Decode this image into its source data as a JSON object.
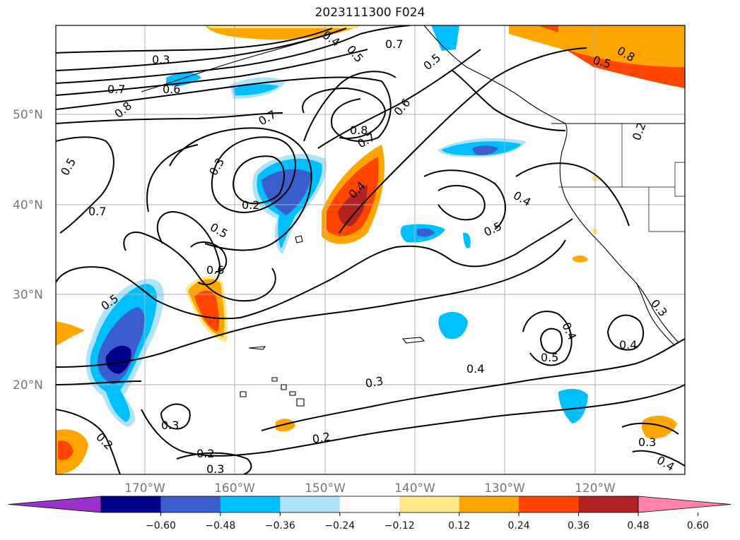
{
  "title": "2023111300 F024",
  "lat_labels": [
    {
      "text": "50°N",
      "lat": 50
    },
    {
      "text": "40°N",
      "lat": 40
    },
    {
      "text": "30°N",
      "lat": 30
    },
    {
      "text": "20°N",
      "lat": 20
    }
  ],
  "lon_labels": [
    {
      "text": "170°W",
      "lon": -170
    },
    {
      "text": "160°W",
      "lon": -160
    },
    {
      "text": "150°W",
      "lon": -150
    },
    {
      "text": "140°W",
      "lon": -140
    },
    {
      "text": "130°W",
      "lon": -130
    },
    {
      "text": "120°W",
      "lon": -120
    }
  ],
  "colorbar": {
    "colors": [
      "#9b32cc",
      "#000088",
      "#3a5fcd",
      "#00bfff",
      "#aee3fb",
      "#ffffff",
      "#fde88a",
      "#ffa500",
      "#ff4500",
      "#b22222",
      "#ff82ab"
    ],
    "tick_labels": [
      "−0.60",
      "−0.48",
      "−0.36",
      "−0.24",
      "−0.12",
      "0.12",
      "0.24",
      "0.36",
      "0.48",
      "0.60"
    ]
  },
  "contour_labels": [
    "0.2",
    "0.3",
    "0.4",
    "0.5",
    "0.6",
    "0.7",
    "0.8"
  ]
}
